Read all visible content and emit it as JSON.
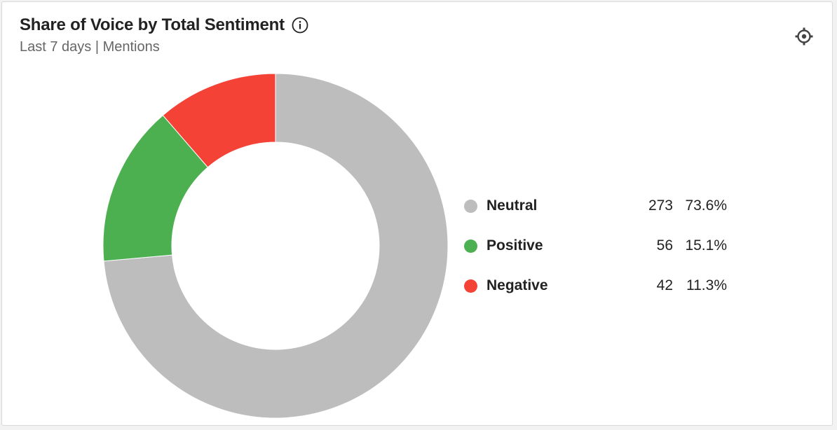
{
  "widget": {
    "title": "Share of Voice by Total Sentiment",
    "subtitle": "Last 7 days | Mentions",
    "icons": {
      "info": "info-icon",
      "settings": "gear-icon"
    }
  },
  "chart_data": {
    "type": "pie",
    "variant": "donut",
    "title": "Share of Voice by Total Sentiment",
    "subtitle": "Last 7 days | Mentions",
    "legend_position": "right",
    "slices": [
      {
        "name": "Neutral",
        "value": 273,
        "percent": "73.6%",
        "color": "#bdbdbd"
      },
      {
        "name": "Positive",
        "value": 56,
        "percent": "15.1%",
        "color": "#4caf50"
      },
      {
        "name": "Negative",
        "value": 42,
        "percent": "11.3%",
        "color": "#f44336"
      }
    ]
  }
}
